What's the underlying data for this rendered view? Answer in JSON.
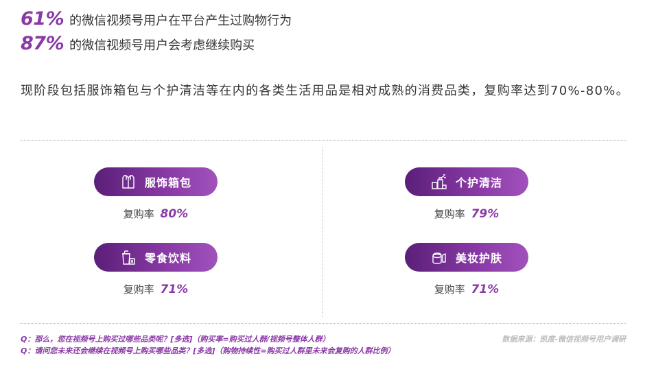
{
  "stats": [
    {
      "value": "61%",
      "text": "的微信视频号用户在平台产生过购物行为"
    },
    {
      "value": "87%",
      "text": "的微信视频号用户会考虑继续购买"
    }
  ],
  "intro": "现阶段包括服饰箱包与个护清洁等在内的各类生活用品是相对成熟的消费品类，复购率达到70%-80%。",
  "categories": [
    {
      "label": "服饰箱包",
      "icon": "shirt-icon",
      "rate_label": "复购率",
      "rate": "80%"
    },
    {
      "label": "个护清洁",
      "icon": "spray-bottle-icon",
      "rate_label": "复购率",
      "rate": "79%"
    },
    {
      "label": "零食饮料",
      "icon": "drink-cup-icon",
      "rate_label": "复购率",
      "rate": "71%"
    },
    {
      "label": "美妆护肤",
      "icon": "cosmetics-icon",
      "rate_label": "复购率",
      "rate": "71%"
    }
  ],
  "notes": [
    "Q：那么，您在视频号上购买过哪些品类呢？[多选]（购买率=购买过人群/视频号整体人群）",
    "Q：请问您未来还会继续在视频号上购买哪些品类？[多选]（购物持续性=购买过人群里未来会复购的人群比例）"
  ],
  "source": "数据来源：凯度-微信视频号用户调研",
  "colors": {
    "accent": "#8a3aa6",
    "gradient_start": "#5a1f78",
    "gradient_end": "#a052bb",
    "source_gray": "#bdbdbd"
  }
}
